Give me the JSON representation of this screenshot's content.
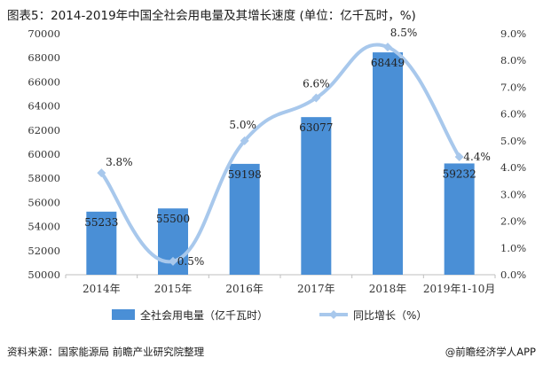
{
  "title": "图表5：2014-2019年中国全社会用电量及其增长速度 (单位：亿千瓦时，%)",
  "source": "资料来源：国家能源局 前瞻产业研究院整理",
  "brand": "@前瞻经济学人APP",
  "colors": {
    "bar": "#4a8fd6",
    "line": "#a8c8ec",
    "marker": "#a8c8ec",
    "axis": "#bfbfbf"
  },
  "chart_data": {
    "type": "bar",
    "categories": [
      "2014年",
      "2015年",
      "2016年",
      "2017年",
      "2018年",
      "2019年1-10月"
    ],
    "series": [
      {
        "name": "全社会用电量（亿千瓦时）",
        "type": "bar",
        "axis": "left",
        "values": [
          55233,
          55500,
          59198,
          63077,
          68449,
          59232
        ],
        "labels": [
          "55233",
          "55500",
          "59198",
          "63077",
          "68449",
          "59232"
        ]
      },
      {
        "name": "同比增长（%）",
        "type": "line",
        "smooth": true,
        "axis": "right",
        "values": [
          3.8,
          0.5,
          5.0,
          6.6,
          8.5,
          4.4
        ],
        "labels": [
          "3.8%",
          "0.5%",
          "5.0%",
          "6.6%",
          "8.5%",
          "4.4%"
        ]
      }
    ],
    "y_left": {
      "min": 50000,
      "max": 70000,
      "ticks": [
        "50000",
        "52000",
        "54000",
        "56000",
        "58000",
        "60000",
        "62000",
        "64000",
        "66000",
        "68000",
        "70000"
      ]
    },
    "y_right": {
      "min": 0,
      "max": 9,
      "ticks": [
        "0.0%",
        "1.0%",
        "2.0%",
        "3.0%",
        "4.0%",
        "5.0%",
        "6.0%",
        "7.0%",
        "8.0%",
        "9.0%"
      ]
    },
    "legend_position": "bottom",
    "grid": false
  }
}
